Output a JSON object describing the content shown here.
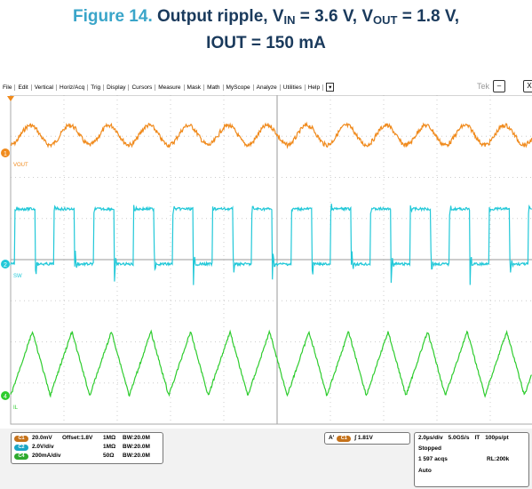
{
  "caption": {
    "label": "Figure 14.",
    "parts": [
      "Output ripple, V",
      "IN",
      " = 3.6 V, V",
      "OUT",
      " = 1.8 V,"
    ],
    "line2": "IOUT = 150 mA"
  },
  "menu": [
    "File",
    "Edit",
    "Vertical",
    "Horiz/Acq",
    "Trig",
    "Display",
    "Cursors",
    "Measure",
    "Mask",
    "Math",
    "MyScope",
    "Analyze",
    "Utilities",
    "Help"
  ],
  "logo": "Tek",
  "channels": [
    {
      "marker": "1",
      "label": "VOUT"
    },
    {
      "marker": "2",
      "label": "SW"
    },
    {
      "marker": "4",
      "label": "IL"
    }
  ],
  "status": {
    "vertical": [
      {
        "badge": "C1",
        "scale": "20.0mV",
        "offset": "Offset:1.8V",
        "imp": "1MΩ",
        "bw": "BW:20.0M"
      },
      {
        "badge": "C2",
        "scale": "2.0V/div",
        "offset": "",
        "imp": "1MΩ",
        "bw": "BW:20.0M"
      },
      {
        "badge": "C4",
        "scale": "200mA/div",
        "offset": "",
        "imp": "50Ω",
        "bw": "BW:20.0M"
      }
    ],
    "trigger": {
      "mode": "A'",
      "badge": "C1",
      "level": "1.81V"
    },
    "horizontal": {
      "row1": [
        "2.0µs/div",
        "5.0GS/s",
        "IT",
        "100ps/pt"
      ],
      "state": "Stopped",
      "acqs": "1 597 acqs",
      "rl": "RL:200k",
      "trig": "Auto"
    }
  }
}
